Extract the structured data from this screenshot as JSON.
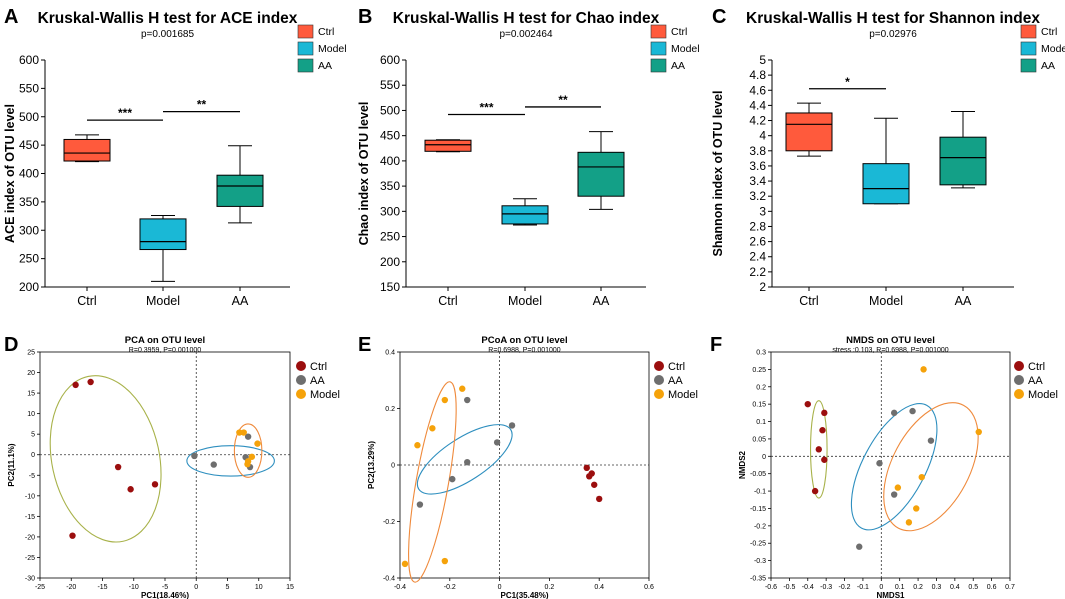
{
  "colors": {
    "ctrl_box": "#ff5a3c",
    "model_box": "#1ab8d6",
    "aa_box": "#13a087",
    "ctrl_pt": "#9b0e0e",
    "aa_pt": "#6e6e6e",
    "model_pt": "#f5a20a",
    "ell_ctrl": "#a8b24a",
    "ell_aa": "#2e8fbf",
    "ell_model": "#ef8a3c"
  },
  "chart_data": [
    {
      "panel": "A",
      "type": "box",
      "title": "Kruskal-Wallis H test for ACE index",
      "subtitle": "p=0.001685",
      "ylabel": "ACE index of OTU level",
      "ylim": [
        200,
        600
      ],
      "yticks": [
        200,
        250,
        300,
        350,
        400,
        450,
        500,
        550,
        600
      ],
      "tick_labels": [
        "200",
        "250",
        "300",
        "350",
        "400",
        "450",
        "500",
        "550",
        "600"
      ],
      "categories": [
        "Ctrl",
        "Model",
        "AA"
      ],
      "boxes": [
        {
          "group": "Ctrl",
          "min": 421,
          "q1": 422,
          "median": 436,
          "q3": 460,
          "max": 468
        },
        {
          "group": "Model",
          "min": 210,
          "q1": 266,
          "median": 280,
          "q3": 320,
          "max": 326
        },
        {
          "group": "AA",
          "min": 313,
          "q1": 342,
          "median": 378,
          "q3": 397,
          "max": 449
        }
      ],
      "sig": [
        {
          "from": 0,
          "to": 1,
          "y": 494,
          "label": "***"
        },
        {
          "from": 1,
          "to": 2,
          "y": 509,
          "label": "**"
        }
      ],
      "legend": [
        "Ctrl",
        "Model",
        "AA"
      ]
    },
    {
      "panel": "B",
      "type": "box",
      "title": "Kruskal-Wallis H test for Chao index",
      "subtitle": "p=0.002464",
      "ylabel": "Chao index of OTU level",
      "ylim": [
        150,
        600
      ],
      "yticks": [
        150,
        200,
        250,
        300,
        350,
        400,
        450,
        500,
        550,
        600
      ],
      "tick_labels": [
        "150",
        "200",
        "250",
        "300",
        "350",
        "400",
        "450",
        "500",
        "550",
        "600"
      ],
      "categories": [
        "Ctrl",
        "Model",
        "AA"
      ],
      "boxes": [
        {
          "group": "Ctrl",
          "min": 418,
          "q1": 419,
          "median": 432,
          "q3": 441,
          "max": 442
        },
        {
          "group": "Model",
          "min": 273,
          "q1": 275,
          "median": 295,
          "q3": 311,
          "max": 325
        },
        {
          "group": "AA",
          "min": 304,
          "q1": 330,
          "median": 388,
          "q3": 417,
          "max": 458
        }
      ],
      "sig": [
        {
          "from": 0,
          "to": 1,
          "y": 492,
          "label": "***"
        },
        {
          "from": 1,
          "to": 2,
          "y": 507,
          "label": "**"
        }
      ],
      "legend": [
        "Ctrl",
        "Model",
        "AA"
      ]
    },
    {
      "panel": "C",
      "type": "box",
      "title": "Kruskal-Wallis H test for Shannon index",
      "subtitle": "p=0.02976",
      "ylabel": "Shannon index of OTU level",
      "ylim": [
        2,
        5
      ],
      "yticks": [
        2,
        2.2,
        2.4,
        2.6,
        2.8,
        3,
        3.2,
        3.4,
        3.6,
        3.8,
        4,
        4.2,
        4.4,
        4.6,
        4.8,
        5
      ],
      "tick_labels": [
        "2",
        "2.2",
        "2.4",
        "2.6",
        "2.8",
        "3",
        "3.2",
        "3.4",
        "3.6",
        "3.8",
        "4",
        "4.2",
        "4.4",
        "4.6",
        "4.8",
        "5"
      ],
      "categories": [
        "Ctrl",
        "Model",
        "AA"
      ],
      "boxes": [
        {
          "group": "Ctrl",
          "min": 3.73,
          "q1": 3.8,
          "median": 4.15,
          "q3": 4.3,
          "max": 4.43
        },
        {
          "group": "Model",
          "min": 3.1,
          "q1": 3.1,
          "median": 3.3,
          "q3": 3.63,
          "max": 4.23
        },
        {
          "group": "AA",
          "min": 3.31,
          "q1": 3.35,
          "median": 3.71,
          "q3": 3.98,
          "max": 4.32
        }
      ],
      "sig": [
        {
          "from": 0,
          "to": 1,
          "y": 4.62,
          "label": "*"
        }
      ],
      "legend": [
        "Ctrl",
        "Model",
        "AA"
      ]
    },
    {
      "panel": "D",
      "type": "scatter",
      "title": "PCA on OTU level",
      "subtitle": "R=0.3959, P=0.001000",
      "xlabel": "PC1(18.46%)",
      "ylabel": "PC2(11.1%)",
      "xlim": [
        -25,
        15
      ],
      "ylim": [
        -30,
        25
      ],
      "xticks": [
        -25,
        -20,
        -15,
        -10,
        -5,
        0,
        5,
        10,
        15
      ],
      "xtick_labels": [
        "-25",
        "-20",
        "-15",
        "-10",
        "-5",
        "0",
        "5",
        "10",
        "15"
      ],
      "yticks": [
        -30,
        -25,
        -20,
        -15,
        -10,
        -5,
        0,
        5,
        10,
        15,
        20,
        25
      ],
      "ytick_labels": [
        "-30",
        "-25",
        "-20",
        "-15",
        "-10",
        "-5",
        "0",
        "5",
        "10",
        "15",
        "20",
        "25"
      ],
      "series": [
        {
          "name": "Ctrl",
          "points": [
            [
              -19.3,
              17
            ],
            [
              -16.9,
              17.7
            ],
            [
              -12.5,
              -3
            ],
            [
              -10.5,
              -8.4
            ],
            [
              -6.6,
              -7.2
            ],
            [
              -19.8,
              -19.7
            ]
          ]
        },
        {
          "name": "AA",
          "points": [
            [
              -0.3,
              -0.3
            ],
            [
              2.8,
              -2.4
            ],
            [
              7.9,
              -0.6
            ],
            [
              8.3,
              4.4
            ],
            [
              8.6,
              -3
            ]
          ]
        },
        {
          "name": "Model",
          "points": [
            [
              6.9,
              5.4
            ],
            [
              7.6,
              5.4
            ],
            [
              9.8,
              2.7
            ],
            [
              8.3,
              -1.6
            ],
            [
              8.9,
              -0.5
            ],
            [
              8.2,
              -2.3
            ]
          ]
        }
      ],
      "ellipses": [
        {
          "name": "Ctrl",
          "cx": -14.5,
          "cy": -1,
          "rx": 8.6,
          "ry": 20.5,
          "rot": -12
        },
        {
          "name": "AA",
          "cx": 5.5,
          "cy": -1.5,
          "rx": 7,
          "ry": 3.7,
          "rot": 0
        },
        {
          "name": "Model",
          "cx": 8.3,
          "cy": 1,
          "rx": 2.2,
          "ry": 6.5,
          "rot": 0
        }
      ],
      "legend": [
        "Ctrl",
        "AA",
        "Model"
      ]
    },
    {
      "panel": "E",
      "type": "scatter",
      "title": "PCoA on OTU level",
      "subtitle": "R=0.6988, P=0.001000",
      "xlabel": "PC1(35.48%)",
      "ylabel": "PC2(13.29%)",
      "xlim": [
        -0.4,
        0.6
      ],
      "ylim": [
        -0.4,
        0.4
      ],
      "xticks": [
        -0.4,
        -0.2,
        0,
        0.2,
        0.4,
        0.6
      ],
      "xtick_labels": [
        "-0.4",
        "-0.2",
        "0",
        "0.2",
        "0.4",
        "0.6"
      ],
      "yticks": [
        -0.4,
        -0.2,
        0,
        0.2,
        0.4
      ],
      "ytick_labels": [
        "-0.4",
        "-0.2",
        "0",
        "0.2",
        "0.4"
      ],
      "series": [
        {
          "name": "Ctrl",
          "points": [
            [
              0.35,
              -0.01
            ],
            [
              0.36,
              -0.04
            ],
            [
              0.37,
              -0.03
            ],
            [
              0.38,
              -0.07
            ],
            [
              0.4,
              -0.12
            ]
          ]
        },
        {
          "name": "AA",
          "points": [
            [
              -0.32,
              -0.14
            ],
            [
              -0.19,
              -0.05
            ],
            [
              -0.13,
              0.01
            ],
            [
              -0.13,
              0.23
            ],
            [
              -0.01,
              0.08
            ],
            [
              0.05,
              0.14
            ]
          ]
        },
        {
          "name": "Model",
          "points": [
            [
              -0.38,
              -0.35
            ],
            [
              -0.33,
              0.07
            ],
            [
              -0.27,
              0.13
            ],
            [
              -0.22,
              0.23
            ],
            [
              -0.15,
              0.27
            ],
            [
              -0.22,
              -0.34
            ]
          ]
        }
      ],
      "ellipses": [
        {
          "name": "AA",
          "cx": -0.14,
          "cy": 0.02,
          "rx": 0.22,
          "ry": 0.075,
          "rot": -33
        },
        {
          "name": "Model",
          "cx": -0.27,
          "cy": -0.06,
          "rx": 0.065,
          "ry": 0.36,
          "rot": 10
        }
      ],
      "legend": [
        "Ctrl",
        "AA",
        "Model"
      ]
    },
    {
      "panel": "F",
      "type": "scatter",
      "title": "NMDS on OTU level",
      "subtitle": "stress :0.103, R=0.6988, P=0.001000",
      "xlabel": "NMDS1",
      "ylabel": "NMDS2",
      "xlim": [
        -0.6,
        0.7
      ],
      "ylim": [
        -0.35,
        0.3
      ],
      "xticks": [
        -0.6,
        -0.5,
        -0.4,
        -0.3,
        -0.2,
        -0.1,
        0,
        0.1,
        0.2,
        0.3,
        0.4,
        0.5,
        0.6,
        0.7
      ],
      "xtick_labels": [
        "-0.6",
        "-0.5",
        "-0.4",
        "-0.3",
        "-0.2",
        "-0.1",
        "0",
        "0.1",
        "0.2",
        "0.3",
        "0.4",
        "0.5",
        "0.6",
        "0.7"
      ],
      "yticks": [
        -0.35,
        -0.3,
        -0.25,
        -0.2,
        -0.15,
        -0.1,
        -0.05,
        0,
        0.05,
        0.1,
        0.15,
        0.2,
        0.25,
        0.3
      ],
      "ytick_labels": [
        "-0.35",
        "-0.3",
        "-0.25",
        "-0.2",
        "-0.15",
        "-0.1",
        "-0.05",
        "0",
        "0.05",
        "0.1",
        "0.15",
        "0.2",
        "0.25",
        "0.3"
      ],
      "series": [
        {
          "name": "Ctrl",
          "points": [
            [
              -0.4,
              0.15
            ],
            [
              -0.31,
              0.125
            ],
            [
              -0.32,
              0.075
            ],
            [
              -0.34,
              0.02
            ],
            [
              -0.31,
              -0.01
            ],
            [
              -0.36,
              -0.1
            ]
          ]
        },
        {
          "name": "AA",
          "points": [
            [
              -0.12,
              -0.26
            ],
            [
              -0.01,
              -0.02
            ],
            [
              0.07,
              -0.11
            ],
            [
              0.07,
              0.125
            ],
            [
              0.17,
              0.13
            ],
            [
              0.27,
              0.045
            ]
          ]
        },
        {
          "name": "Model",
          "points": [
            [
              0.09,
              -0.09
            ],
            [
              0.15,
              -0.19
            ],
            [
              0.19,
              -0.15
            ],
            [
              0.22,
              -0.06
            ],
            [
              0.23,
              0.25
            ],
            [
              0.53,
              0.07
            ]
          ]
        }
      ],
      "ellipses": [
        {
          "name": "Ctrl",
          "cx": -0.34,
          "cy": 0.02,
          "rx": 0.045,
          "ry": 0.14,
          "rot": 0
        },
        {
          "name": "AA",
          "cx": 0.07,
          "cy": -0.03,
          "rx": 0.17,
          "ry": 0.2,
          "rot": 28
        },
        {
          "name": "Model",
          "cx": 0.27,
          "cy": -0.03,
          "rx": 0.21,
          "ry": 0.2,
          "rot": 28
        }
      ],
      "legend": [
        "Ctrl",
        "AA",
        "Model"
      ]
    }
  ]
}
